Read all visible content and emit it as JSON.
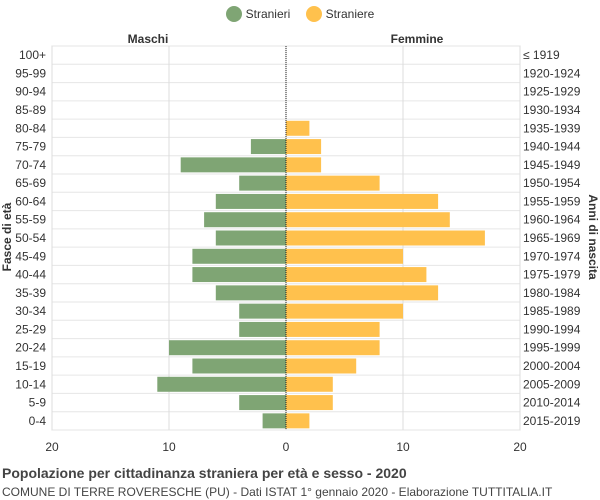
{
  "colors": {
    "male": "#7fa574",
    "female": "#ffc14d",
    "axis": "#222222",
    "grid": "#dddddd"
  },
  "legend": {
    "male": "Stranieri",
    "female": "Straniere"
  },
  "headers": {
    "left": "Maschi",
    "right": "Femmine"
  },
  "caption": {
    "title": "Popolazione per cittadinanza straniera per età e sesso - 2020",
    "subtitle": "COMUNE DI TERRE ROVERESCHE (PU) - Dati ISTAT 1° gennaio 2020 - Elaborazione TUTTITALIA.IT"
  },
  "chart_data": {
    "type": "bar",
    "orientation": "horizontal-population-pyramid",
    "title": "Popolazione per cittadinanza straniera per età e sesso - 2020",
    "ylabel_left": "Fasce di età",
    "ylabel_right": "Anni di nascita",
    "xlim": [
      -20,
      20
    ],
    "xticks": [
      {
        "value": -20,
        "label": "20"
      },
      {
        "value": -10,
        "label": "10"
      },
      {
        "value": 0,
        "label": "0"
      },
      {
        "value": 10,
        "label": "10"
      },
      {
        "value": 20,
        "label": "20"
      }
    ],
    "age_groups": [
      "100+",
      "95-99",
      "90-94",
      "85-89",
      "80-84",
      "75-79",
      "70-74",
      "65-69",
      "60-64",
      "55-59",
      "50-54",
      "45-49",
      "40-44",
      "35-39",
      "30-34",
      "25-29",
      "20-24",
      "15-19",
      "10-14",
      "5-9",
      "0-4"
    ],
    "birth_years": [
      "≤ 1919",
      "1920-1924",
      "1925-1929",
      "1930-1934",
      "1935-1939",
      "1940-1944",
      "1945-1949",
      "1950-1954",
      "1955-1959",
      "1960-1964",
      "1965-1969",
      "1970-1974",
      "1975-1979",
      "1980-1984",
      "1985-1989",
      "1990-1994",
      "1995-1999",
      "2000-2004",
      "2005-2009",
      "2010-2014",
      "2015-2019"
    ],
    "series": [
      {
        "name": "Stranieri",
        "values": [
          0,
          0,
          0,
          0,
          0,
          3,
          9,
          4,
          6,
          7,
          6,
          8,
          8,
          6,
          4,
          4,
          10,
          8,
          11,
          4,
          2
        ]
      },
      {
        "name": "Straniere",
        "values": [
          0,
          0,
          0,
          0,
          2,
          3,
          3,
          8,
          13,
          14,
          17,
          10,
          12,
          13,
          10,
          8,
          8,
          6,
          4,
          4,
          2
        ]
      }
    ]
  }
}
